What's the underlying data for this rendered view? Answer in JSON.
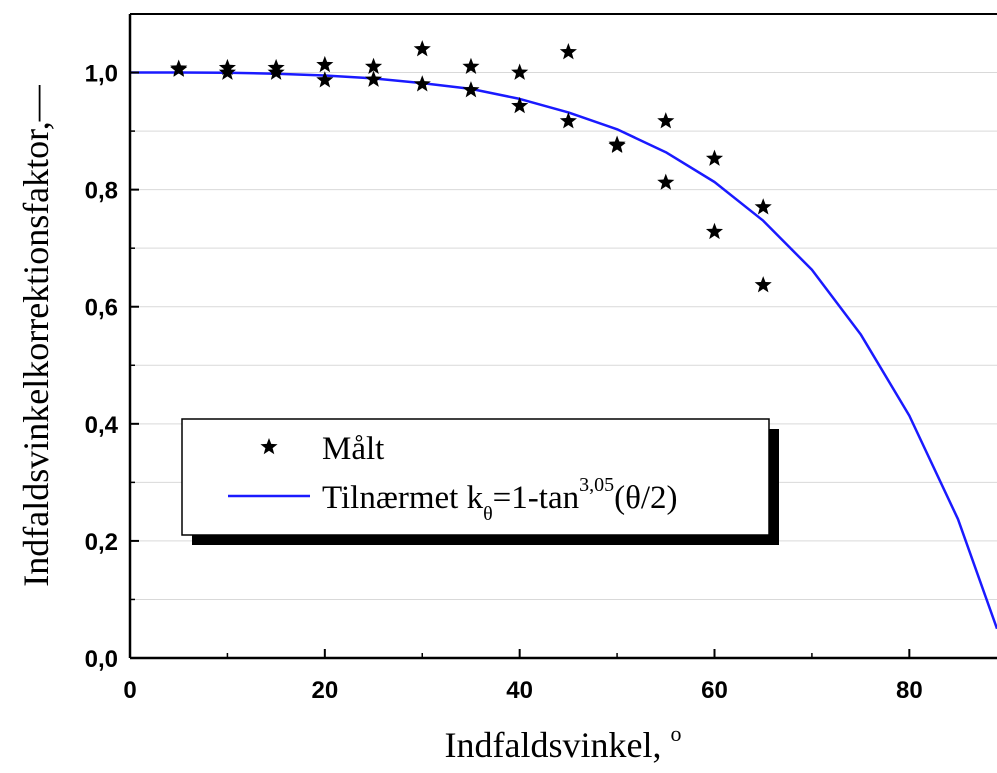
{
  "chart_data": {
    "type": "scatter",
    "xlabel": "Indfaldsvinkel, ",
    "xlabel_superscript": "o",
    "ylabel": "Indfaldsvinkelkorrektionsfaktor,—",
    "xlim": [
      0,
      89
    ],
    "ylim": [
      0,
      1.1
    ],
    "x_ticks": [
      0,
      20,
      40,
      60,
      80
    ],
    "x_tick_labels": [
      "0",
      "20",
      "40",
      "60",
      "80"
    ],
    "y_ticks": [
      0.0,
      0.2,
      0.4,
      0.6,
      0.8,
      1.0
    ],
    "y_tick_labels": [
      "0,0",
      "0,2",
      "0,4",
      "0,6",
      "0,8",
      "1,0"
    ],
    "grid": "horizontal",
    "legend_position": "lower-left",
    "legend": {
      "measured_label": "Målt",
      "fit_label_prefix": "Tilnærmet k",
      "fit_label_subscript": "θ",
      "fit_label_mid": "=1-tan",
      "fit_label_superscript": "3,05",
      "fit_label_suffix": "(θ/2)"
    },
    "series": [
      {
        "name": "Målt",
        "type": "scatter",
        "color": "#000000",
        "marker": "star",
        "points": [
          [
            5,
            1.007
          ],
          [
            5,
            1.005
          ],
          [
            10,
            1.008
          ],
          [
            10,
            1.0
          ],
          [
            15,
            1.008
          ],
          [
            15,
            1.0
          ],
          [
            20,
            1.013
          ],
          [
            20,
            0.987
          ],
          [
            25,
            1.01
          ],
          [
            25,
            0.988
          ],
          [
            30,
            1.04
          ],
          [
            30,
            0.98
          ],
          [
            35,
            1.01
          ],
          [
            35,
            0.97
          ],
          [
            40,
            1.0
          ],
          [
            40,
            0.943
          ],
          [
            45,
            1.035
          ],
          [
            45,
            0.917
          ],
          [
            50,
            0.877
          ],
          [
            50,
            0.875
          ],
          [
            55,
            0.917
          ],
          [
            55,
            0.812
          ],
          [
            60,
            0.853
          ],
          [
            60,
            0.728
          ],
          [
            65,
            0.77
          ],
          [
            65,
            0.637
          ]
        ]
      },
      {
        "name": "Tilnærmet kθ=1-tan3,05(θ/2)",
        "type": "line",
        "color": "#1a1aff",
        "points": [
          [
            0,
            1.0
          ],
          [
            5,
            1.0
          ],
          [
            10,
            0.9995
          ],
          [
            15,
            0.998
          ],
          [
            20,
            0.995
          ],
          [
            25,
            0.99
          ],
          [
            30,
            0.982
          ],
          [
            35,
            0.972
          ],
          [
            40,
            0.955
          ],
          [
            45,
            0.932
          ],
          [
            50,
            0.903
          ],
          [
            55,
            0.864
          ],
          [
            60,
            0.813
          ],
          [
            65,
            0.747
          ],
          [
            70,
            0.663
          ],
          [
            75,
            0.553
          ],
          [
            80,
            0.414
          ],
          [
            85,
            0.237
          ],
          [
            89,
            0.05
          ]
        ]
      }
    ]
  }
}
